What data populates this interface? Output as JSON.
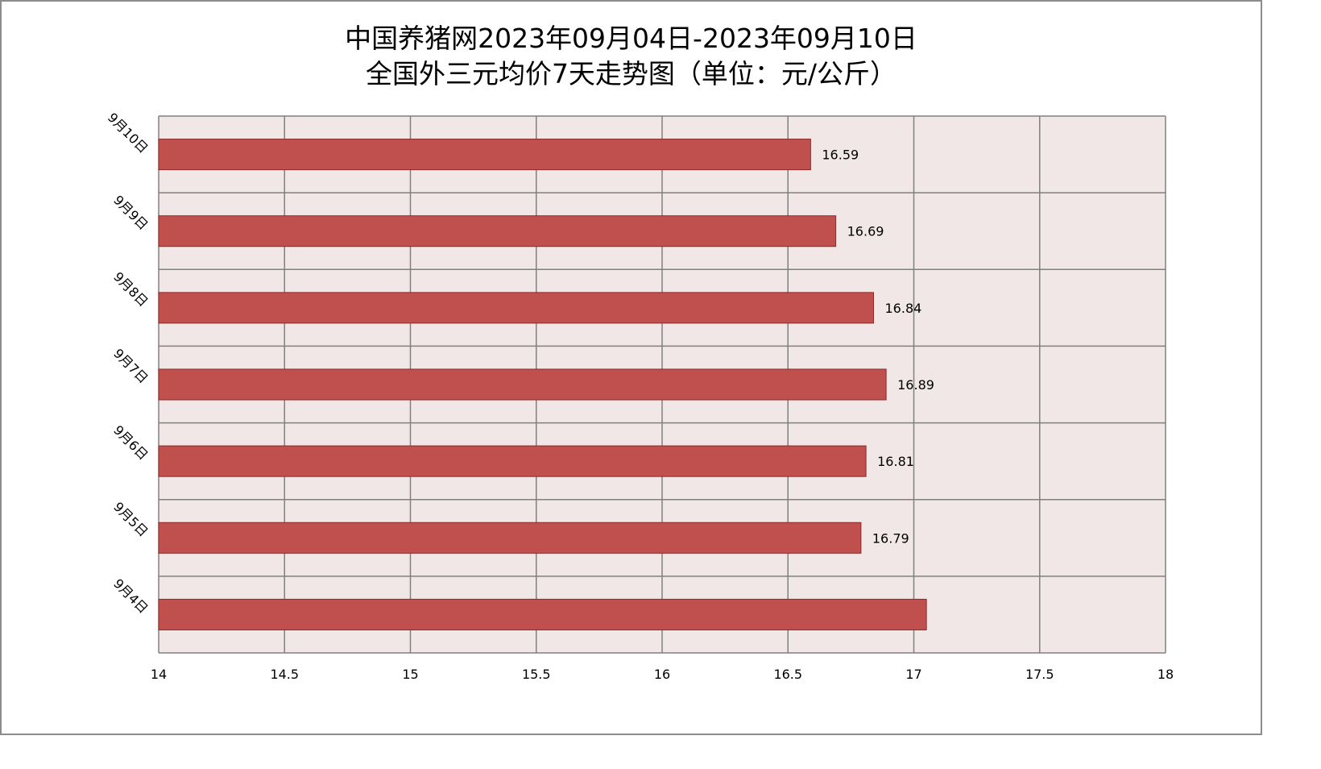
{
  "chart_data": {
    "type": "bar",
    "orientation": "horizontal",
    "title_lines": [
      "中国养猪网2023年09月04日-2023年09月10日",
      "全国外三元均价7天走势图（单位：元/公斤）"
    ],
    "categories": [
      "9月10日",
      "9月9日",
      "9月8日",
      "9月7日",
      "9月6日",
      "9月5日",
      "9月4日"
    ],
    "values": [
      16.59,
      16.69,
      16.84,
      16.89,
      16.81,
      16.79,
      17.05
    ],
    "data_labels": [
      "16.59",
      "16.69",
      "16.84",
      "16.89",
      "16.81",
      "16.79",
      ""
    ],
    "xlim": [
      14,
      18
    ],
    "x_ticks": [
      "14",
      "14.5",
      "15",
      "15.5",
      "16",
      "16.5",
      "17",
      "17.5",
      "18"
    ],
    "grid": true,
    "legend": "none",
    "colors": {
      "bar_fill": "#c0504d",
      "bar_stroke": "#8c2b28",
      "plot_background": "#f2e7e7",
      "grid": "#808080"
    }
  }
}
